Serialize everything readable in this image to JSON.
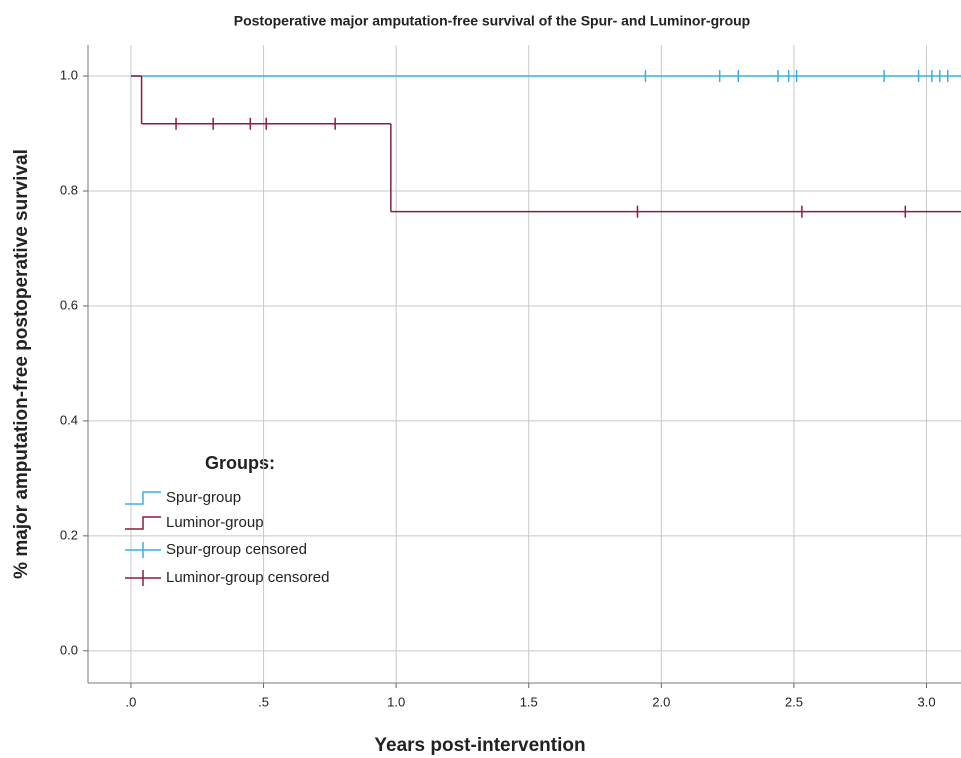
{
  "chart_data": {
    "type": "kaplan-meier",
    "title": "Postoperative major amputation-free survival of the Spur- and Luminor-group",
    "x_label": "Years post-intervention",
    "y_label": "% major amputation-free postoperative survival",
    "legend_title": "Groups:",
    "xlim": [
      -0.162,
      3.13
    ],
    "ylim": [
      -0.056,
      1.054
    ],
    "xticks": [
      {
        "value": 0,
        "label": ".0"
      },
      {
        "value": 0.5,
        "label": ".5"
      },
      {
        "value": 1,
        "label": "1.0"
      },
      {
        "value": 1.5,
        "label": "1.5"
      },
      {
        "value": 2,
        "label": "2.0"
      },
      {
        "value": 2.5,
        "label": "2.5"
      },
      {
        "value": 3,
        "label": "3.0"
      }
    ],
    "yticks": [
      {
        "value": 0,
        "label": "0.0"
      },
      0.2,
      0.4,
      0.6,
      0.8,
      {
        "value": 1,
        "label": "1.0"
      }
    ],
    "grid": true,
    "series": [
      {
        "name": "Spur-group",
        "color": "#3aaee3",
        "marker": "step",
        "x": [
          0
        ],
        "values": [
          1.0
        ]
      },
      {
        "name": "Luminor-group",
        "color": "#8c1c3f",
        "marker": "step",
        "x": [
          0,
          0.04,
          0.98
        ],
        "values": [
          1.0,
          0.917,
          0.764
        ]
      },
      {
        "name": "Spur-group censored",
        "color": "#3aaee3",
        "marker": "censor",
        "x": [
          1.94,
          2.22,
          2.29,
          2.44,
          2.48,
          2.51,
          2.84,
          2.97,
          3.02,
          3.05,
          3.08
        ],
        "values": [
          1.0,
          1.0,
          1.0,
          1.0,
          1.0,
          1.0,
          1.0,
          1.0,
          1.0,
          1.0,
          1.0
        ]
      },
      {
        "name": "Luminor-group censored",
        "color": "#8c1c3f",
        "marker": "censor",
        "x": [
          0.17,
          0.31,
          0.45,
          0.51,
          0.77,
          1.91,
          2.53,
          2.92
        ],
        "values": [
          0.917,
          0.917,
          0.917,
          0.917,
          0.917,
          0.764,
          0.764,
          0.764
        ]
      }
    ]
  }
}
